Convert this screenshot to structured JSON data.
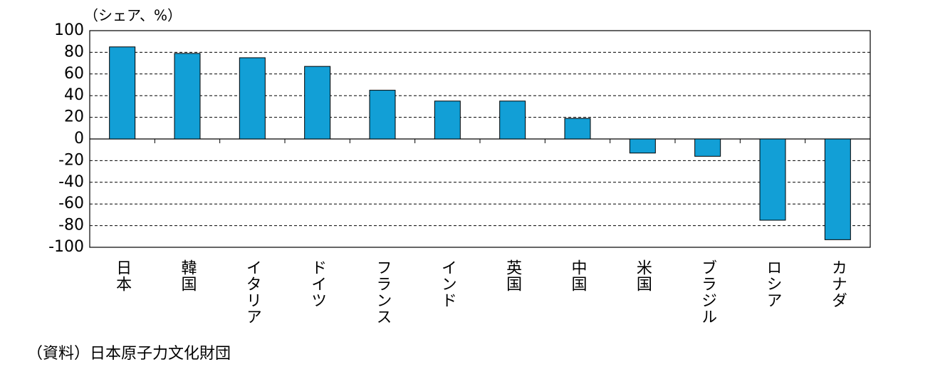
{
  "chart_data": {
    "type": "bar",
    "ylabel": "（シェア、%）",
    "source": "（資料）日本原子力文化財団",
    "categories": [
      "日本",
      "韓国",
      "イタリア",
      "ドイツ",
      "フランス",
      "インド",
      "英国",
      "中国",
      "米国",
      "ブラジル",
      "ロシア",
      "カナダ"
    ],
    "values": [
      85,
      79,
      75,
      67,
      45,
      35,
      35,
      19,
      -13,
      -16,
      -75,
      -93
    ],
    "color": "#129fd6",
    "ylim": [
      -100,
      100
    ],
    "yticks": [
      -100,
      -80,
      -60,
      -40,
      -20,
      0,
      20,
      40,
      60,
      80,
      100
    ],
    "grid": true
  }
}
